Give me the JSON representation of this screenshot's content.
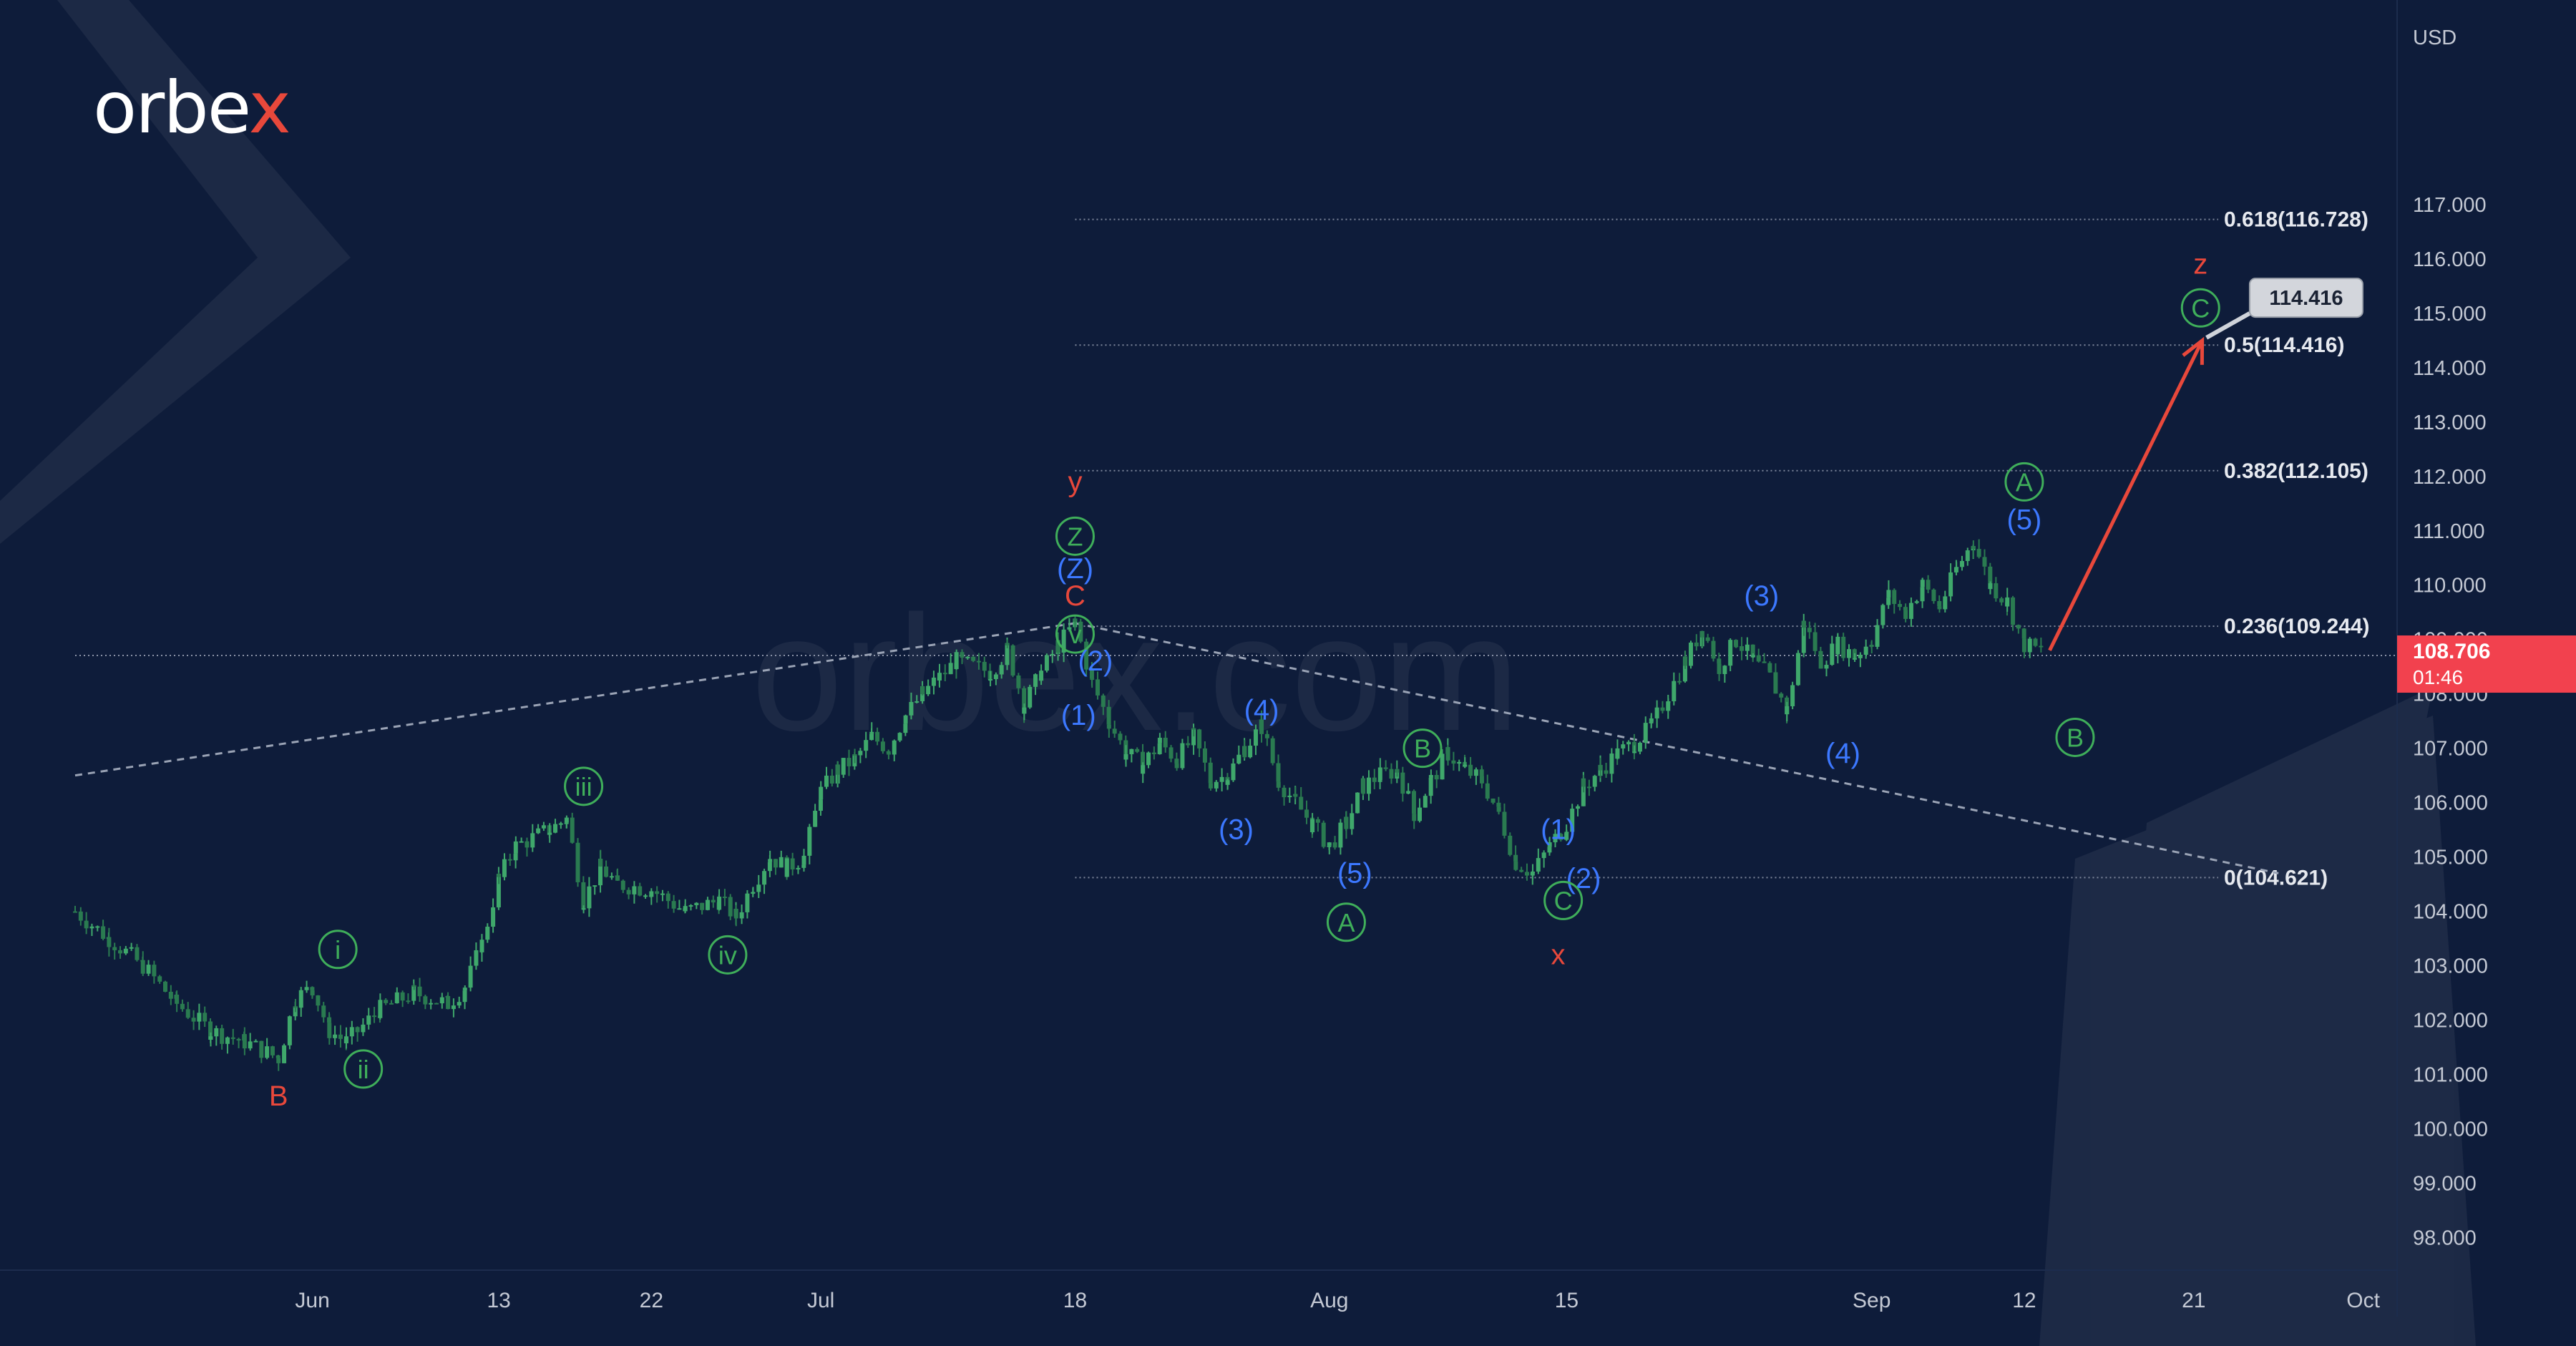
{
  "brand": {
    "name": "orbex",
    "accent": "#e8483b"
  },
  "colors": {
    "background": "#0e1c3a",
    "candle": "#3fa86b",
    "candle_down": "#2a7b50",
    "fib_line": "#7e879c",
    "trend_line": "#9aa3b5",
    "current_price_bg": "#f2414e",
    "label_red": "#e8483b",
    "label_green": "#3fae5a",
    "label_blue": "#3c78ff",
    "arrow": "#e8483b",
    "axis_text": "#c4c9d4"
  },
  "chart_data": {
    "type": "candlestick",
    "title": "",
    "y_unit": "USD",
    "ylim": [
      97.4,
      120.5
    ],
    "y_ticks": [
      "98.000",
      "99.000",
      "100.000",
      "101.000",
      "102.000",
      "103.000",
      "104.000",
      "105.000",
      "106.000",
      "107.000",
      "108.000",
      "109.000",
      "110.000",
      "111.000",
      "112.000",
      "113.000",
      "114.000",
      "115.000",
      "116.000",
      "117.000"
    ],
    "x_ticks": [
      "Jun",
      "13",
      "22",
      "Jul",
      "18",
      "Aug",
      "15",
      "Sep",
      "12",
      "21",
      "Oct"
    ],
    "x_tick_values": [
      32,
      43,
      52,
      62,
      77,
      92,
      106,
      124,
      133,
      143,
      153
    ],
    "xlim": [
      18,
      155
    ],
    "fib_levels": [
      {
        "label": "0.618(116.728)",
        "value": 116.728
      },
      {
        "label": "0.5(114.416)",
        "value": 114.416
      },
      {
        "label": "0.382(112.105)",
        "value": 112.105
      },
      {
        "label": "0.236(109.244)",
        "value": 109.244
      },
      {
        "label": "0(104.621)",
        "value": 104.621
      }
    ],
    "fib_x_start": 77,
    "current_price": {
      "value": "108.706",
      "countdown": "01:46"
    },
    "target_label": "114.416",
    "series": [
      {
        "name": "",
        "points": [
          [
            18,
            104.0
          ],
          [
            20,
            103.5
          ],
          [
            22,
            103.0
          ],
          [
            24,
            102.3
          ],
          [
            26,
            101.8
          ],
          [
            28,
            101.6
          ],
          [
            30,
            101.3
          ],
          [
            31,
            102.4
          ],
          [
            32,
            102.6
          ],
          [
            33,
            101.8
          ],
          [
            34,
            101.6
          ],
          [
            36,
            102.2
          ],
          [
            38,
            102.5
          ],
          [
            40,
            102.3
          ],
          [
            41,
            102.6
          ],
          [
            42,
            103.4
          ],
          [
            43,
            104.6
          ],
          [
            44,
            105.2
          ],
          [
            46,
            105.5
          ],
          [
            47,
            105.7
          ],
          [
            48,
            104.2
          ],
          [
            49,
            104.8
          ],
          [
            50,
            104.5
          ],
          [
            52,
            104.4
          ],
          [
            54,
            104.0
          ],
          [
            56,
            104.2
          ],
          [
            57,
            103.9
          ],
          [
            58,
            104.5
          ],
          [
            59,
            105.0
          ],
          [
            60,
            104.8
          ],
          [
            61,
            105.0
          ],
          [
            62,
            106.2
          ],
          [
            63,
            106.6
          ],
          [
            64,
            106.8
          ],
          [
            65,
            107.2
          ],
          [
            66,
            107.0
          ],
          [
            67,
            107.6
          ],
          [
            68,
            108.0
          ],
          [
            69,
            108.3
          ],
          [
            70,
            108.6
          ],
          [
            72,
            108.4
          ],
          [
            73,
            108.8
          ],
          [
            74,
            107.8
          ],
          [
            75,
            108.4
          ],
          [
            76,
            108.9
          ],
          [
            77,
            109.3
          ],
          [
            78,
            108.2
          ],
          [
            79,
            107.5
          ],
          [
            80,
            106.9
          ],
          [
            81,
            106.7
          ],
          [
            82,
            107.1
          ],
          [
            83,
            106.8
          ],
          [
            84,
            107.2
          ],
          [
            85,
            106.4
          ],
          [
            86,
            106.5
          ],
          [
            87,
            107.0
          ],
          [
            88,
            107.4
          ],
          [
            89,
            106.4
          ],
          [
            90,
            106.0
          ],
          [
            91,
            105.6
          ],
          [
            92,
            105.2
          ],
          [
            93,
            105.6
          ],
          [
            94,
            106.3
          ],
          [
            95,
            106.5
          ],
          [
            96,
            106.6
          ],
          [
            97,
            105.8
          ],
          [
            98,
            106.4
          ],
          [
            99,
            106.9
          ],
          [
            100,
            106.6
          ],
          [
            101,
            106.4
          ],
          [
            102,
            105.8
          ],
          [
            103,
            104.9
          ],
          [
            104,
            104.7
          ],
          [
            105,
            105.2
          ],
          [
            106,
            105.6
          ],
          [
            107,
            106.3
          ],
          [
            108,
            106.6
          ],
          [
            109,
            106.9
          ],
          [
            110,
            107.1
          ],
          [
            111,
            107.4
          ],
          [
            112,
            108.0
          ],
          [
            113,
            108.6
          ],
          [
            114,
            109.2
          ],
          [
            115,
            108.5
          ],
          [
            116,
            109.0
          ],
          [
            117,
            108.6
          ],
          [
            118,
            108.3
          ],
          [
            119,
            107.7
          ],
          [
            120,
            109.3
          ],
          [
            121,
            108.6
          ],
          [
            122,
            108.9
          ],
          [
            123,
            108.7
          ],
          [
            124,
            109.0
          ],
          [
            125,
            109.8
          ],
          [
            126,
            109.5
          ],
          [
            127,
            110.0
          ],
          [
            128,
            109.6
          ],
          [
            129,
            110.3
          ],
          [
            130,
            110.8
          ],
          [
            131,
            110.0
          ],
          [
            132,
            109.7
          ],
          [
            133,
            108.9
          ],
          [
            134,
            108.8
          ]
        ]
      }
    ],
    "trend_lines": [
      {
        "from": [
          18,
          106.5
        ],
        "to": [
          77,
          109.3
        ]
      },
      {
        "from": [
          77,
          109.3
        ],
        "to": [
          148,
          104.7
        ]
      }
    ],
    "projection": {
      "from": [
        134.5,
        108.8
      ],
      "to": [
        143.5,
        114.5
      ]
    },
    "wave_labels": [
      {
        "text": "B",
        "x": 30,
        "y": 100.6,
        "color": "red",
        "circled": false
      },
      {
        "text": "i",
        "x": 33.5,
        "y": 103.3,
        "color": "green",
        "circled": true
      },
      {
        "text": "ii",
        "x": 35,
        "y": 101.1,
        "color": "green",
        "circled": true
      },
      {
        "text": "iii",
        "x": 48,
        "y": 106.3,
        "color": "green",
        "circled": true
      },
      {
        "text": "iv",
        "x": 56.5,
        "y": 103.2,
        "color": "green",
        "circled": true
      },
      {
        "text": "y",
        "x": 77,
        "y": 111.9,
        "color": "red",
        "circled": false
      },
      {
        "text": "Z",
        "x": 77,
        "y": 110.9,
        "color": "green",
        "circled": true
      },
      {
        "text": "(Z)",
        "x": 77,
        "y": 110.3,
        "color": "blue",
        "circled": false
      },
      {
        "text": "C",
        "x": 77,
        "y": 109.8,
        "color": "red",
        "circled": false
      },
      {
        "text": "v",
        "x": 77,
        "y": 109.1,
        "color": "green",
        "circled": true
      },
      {
        "text": "(2)",
        "x": 78.2,
        "y": 108.6,
        "color": "blue",
        "circled": false
      },
      {
        "text": "(1)",
        "x": 77.2,
        "y": 107.6,
        "color": "blue",
        "circled": false
      },
      {
        "text": "(4)",
        "x": 88,
        "y": 107.7,
        "color": "blue",
        "circled": false
      },
      {
        "text": "(3)",
        "x": 86.5,
        "y": 105.5,
        "color": "blue",
        "circled": false
      },
      {
        "text": "(5)",
        "x": 93.5,
        "y": 104.7,
        "color": "blue",
        "circled": false
      },
      {
        "text": "A",
        "x": 93,
        "y": 103.8,
        "color": "green",
        "circled": true
      },
      {
        "text": "B",
        "x": 97.5,
        "y": 107.0,
        "color": "green",
        "circled": true
      },
      {
        "text": "(1)",
        "x": 105.5,
        "y": 105.5,
        "color": "blue",
        "circled": false
      },
      {
        "text": "(2)",
        "x": 107,
        "y": 104.6,
        "color": "blue",
        "circled": false
      },
      {
        "text": "C",
        "x": 105.8,
        "y": 104.2,
        "color": "green",
        "circled": true
      },
      {
        "text": "x",
        "x": 105.5,
        "y": 103.2,
        "color": "red",
        "circled": false
      },
      {
        "text": "(3)",
        "x": 117.5,
        "y": 109.8,
        "color": "blue",
        "circled": false
      },
      {
        "text": "(4)",
        "x": 122.3,
        "y": 106.9,
        "color": "blue",
        "circled": false
      },
      {
        "text": "A",
        "x": 133,
        "y": 111.9,
        "color": "green",
        "circled": true
      },
      {
        "text": "(5)",
        "x": 133,
        "y": 111.2,
        "color": "blue",
        "circled": false
      },
      {
        "text": "B",
        "x": 136,
        "y": 107.2,
        "color": "green",
        "circled": true
      },
      {
        "text": "z",
        "x": 143.4,
        "y": 115.9,
        "color": "red",
        "circled": false
      },
      {
        "text": "C",
        "x": 143.4,
        "y": 115.1,
        "color": "green",
        "circled": true
      }
    ]
  }
}
